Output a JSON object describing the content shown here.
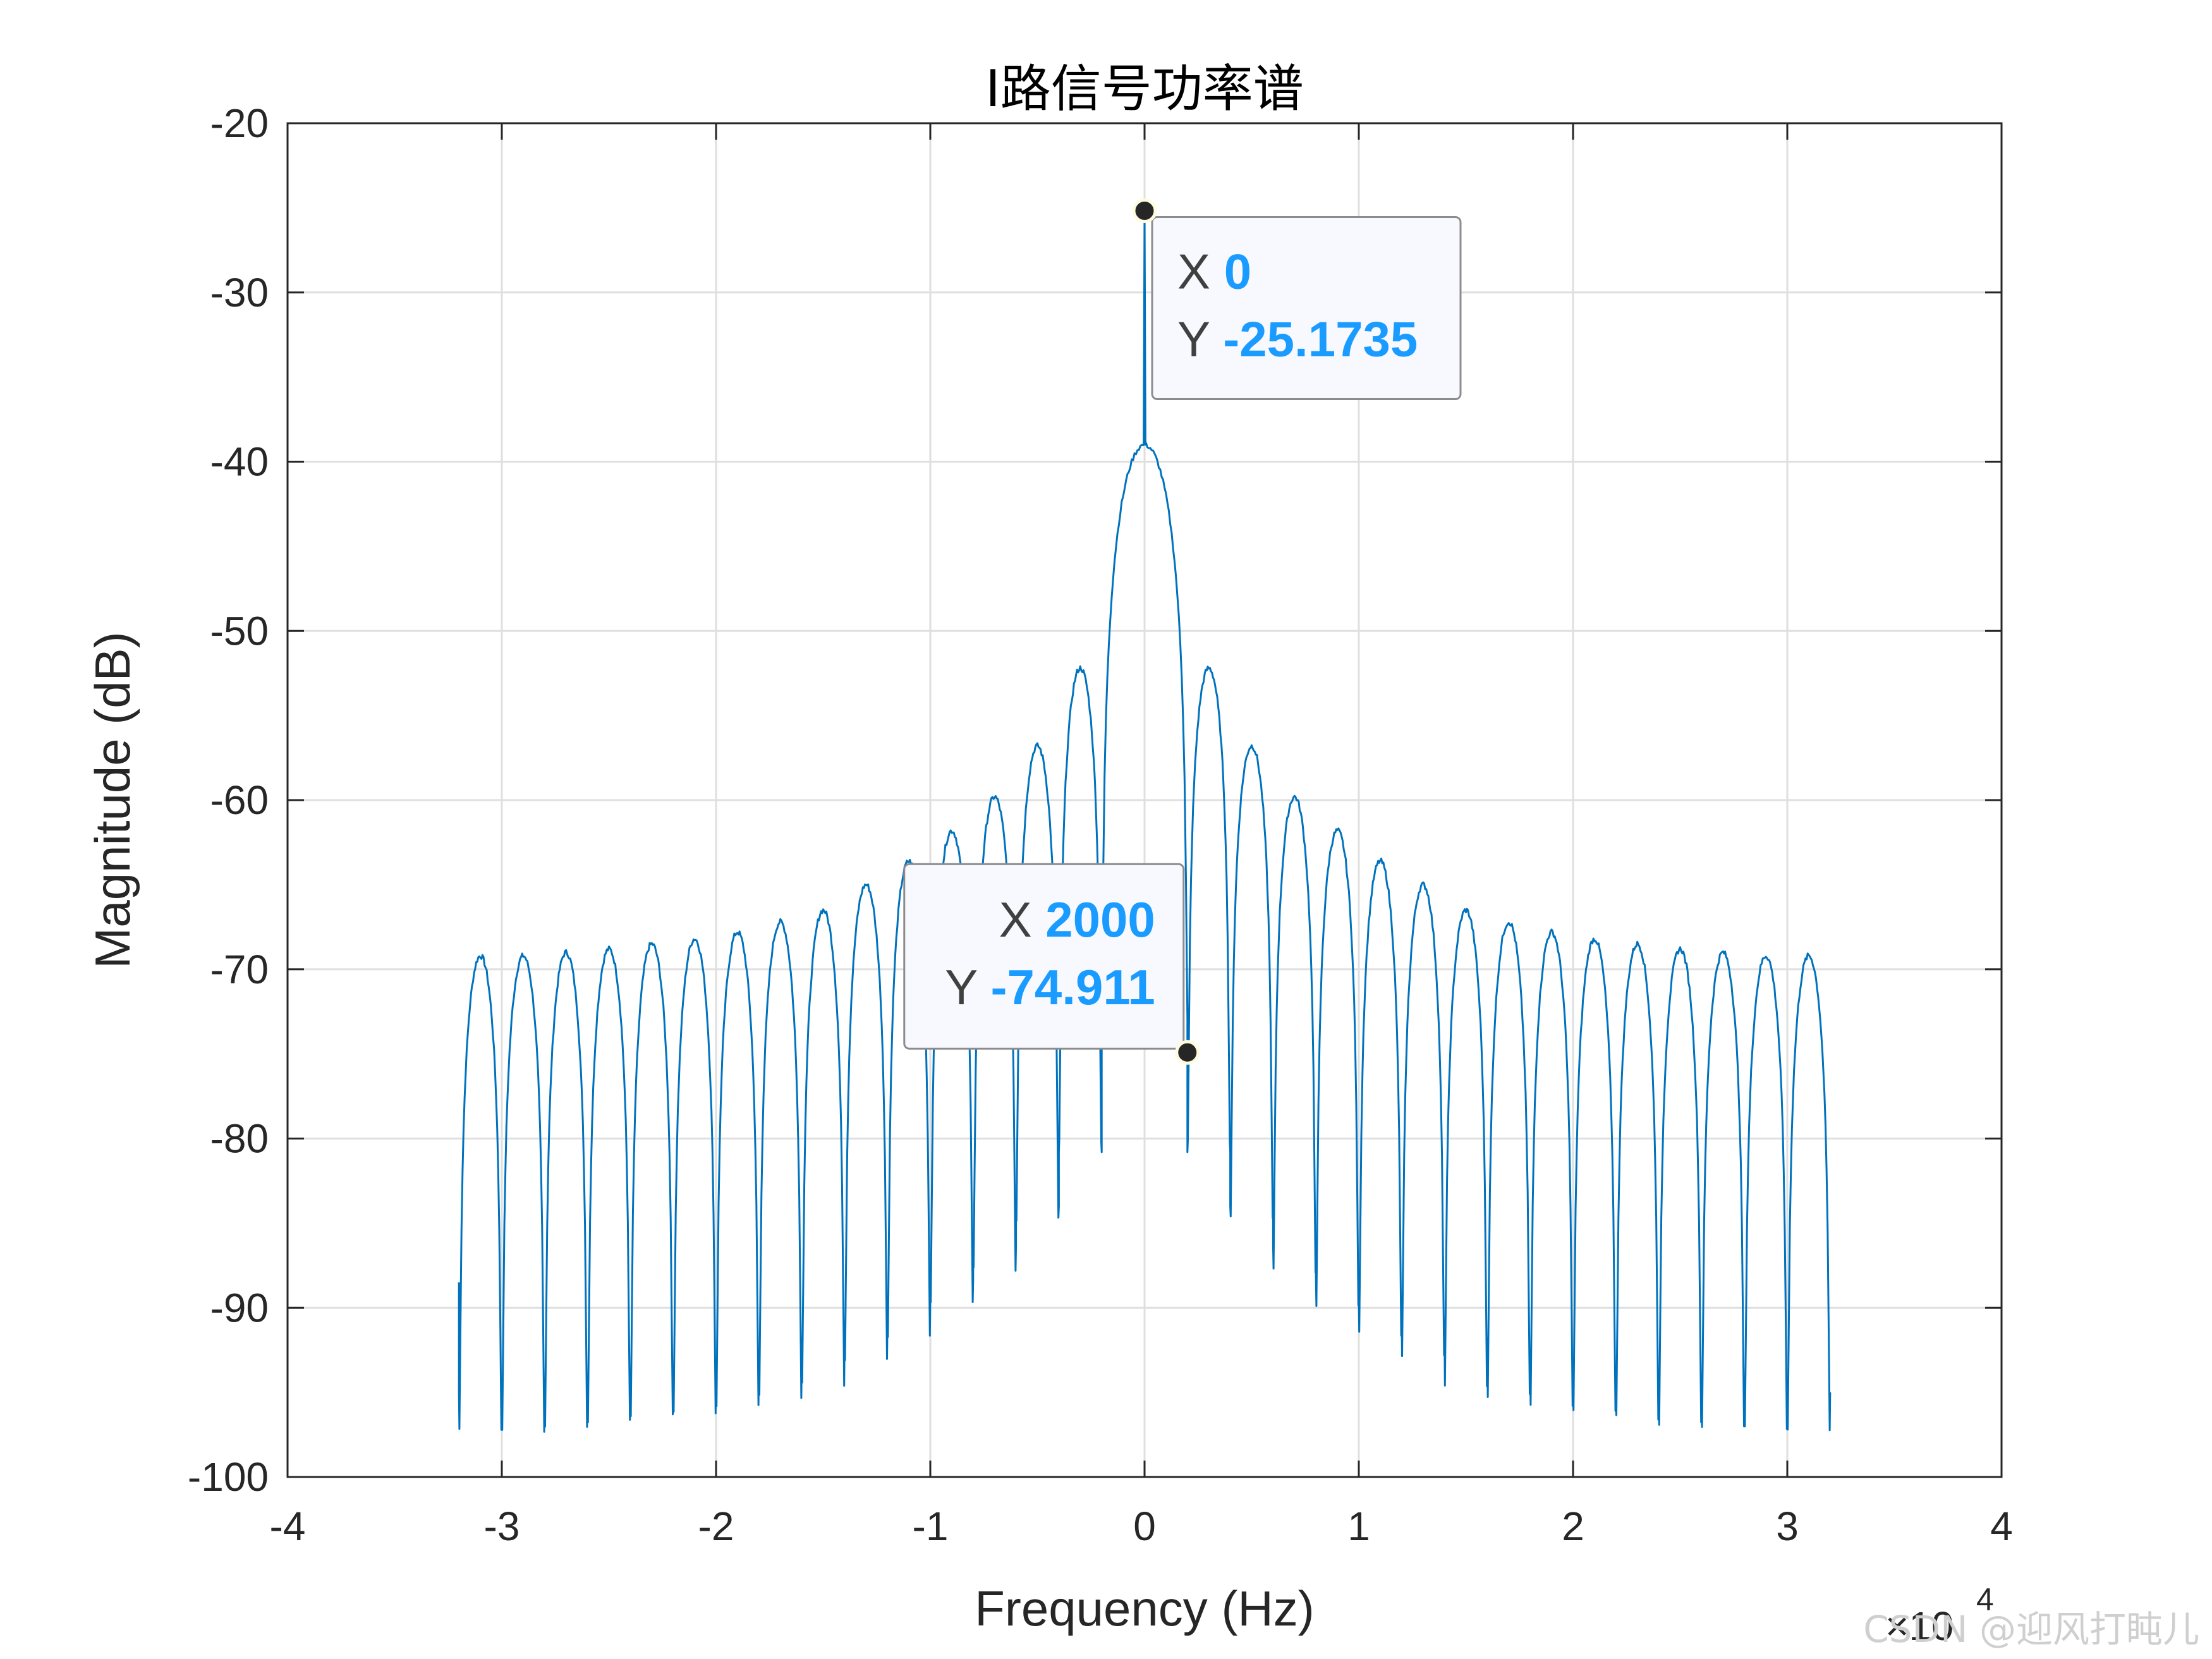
{
  "chart_data": {
    "type": "line",
    "title": "I路信号功率谱",
    "xlabel": "Frequency (Hz)",
    "ylabel": "Magnitude (dB)",
    "x_exponent_base": "×10",
    "x_exponent_power": "4",
    "xlim": [
      -40000,
      40000
    ],
    "ylim": [
      -100,
      -20
    ],
    "x_tick_values": [
      -40000,
      -30000,
      -20000,
      -10000,
      0,
      10000,
      20000,
      30000,
      40000
    ],
    "x_tick_labels": [
      "-4",
      "-3",
      "-2",
      "-1",
      "0",
      "1",
      "2",
      "3",
      "4"
    ],
    "y_tick_values": [
      -20,
      -30,
      -40,
      -50,
      -60,
      -70,
      -80,
      -90,
      -100
    ],
    "y_tick_labels": [
      "-20",
      "-30",
      "-40",
      "-50",
      "-60",
      "-70",
      "-80",
      "-90",
      "-100"
    ],
    "grid": true,
    "line_color": "#0072bd",
    "spectrum": {
      "x_start": -32000,
      "x_end": 32000,
      "start_level": -88.5,
      "end_level": -95,
      "dc_peak": -25.1735,
      "main_lobe_half_width": 2000,
      "main_lobe_top": -39,
      "sidelobes": [
        {
          "x": -31000,
          "peak": -69.2,
          "null": -95
        },
        {
          "x": -29000,
          "peak": -69.2,
          "null": -95
        },
        {
          "x": -27000,
          "peak": -69.0,
          "null": -94.6
        },
        {
          "x": -25000,
          "peak": -68.8,
          "null": -94.3
        },
        {
          "x": -23000,
          "peak": -68.5,
          "null": -94.0
        },
        {
          "x": -21000,
          "peak": -68.2,
          "null": -93.6
        },
        {
          "x": -19000,
          "peak": -67.8,
          "null": -93.1
        },
        {
          "x": -17000,
          "peak": -67.2,
          "null": -92.6
        },
        {
          "x": -15000,
          "peak": -66.5,
          "null": -91.8
        },
        {
          "x": -13000,
          "peak": -65.0,
          "null": -90.9
        },
        {
          "x": -11000,
          "peak": -63.6,
          "null": -89.5
        },
        {
          "x": -9000,
          "peak": -61.8,
          "null": -88.3
        },
        {
          "x": -7000,
          "peak": -59.8,
          "null": -86.3
        },
        {
          "x": -5000,
          "peak": -56.8,
          "null": -84.0
        },
        {
          "x": -3000,
          "peak": -52.2,
          "null": -80.8
        },
        {
          "x": 3000,
          "peak": -52.2,
          "null": -80.8
        },
        {
          "x": 5000,
          "peak": -56.8,
          "null": -84.0
        },
        {
          "x": 7000,
          "peak": -59.8,
          "null": -86.3
        },
        {
          "x": 9000,
          "peak": -61.8,
          "null": -88.3
        },
        {
          "x": 11000,
          "peak": -63.6,
          "null": -89.5
        },
        {
          "x": 13000,
          "peak": -65.0,
          "null": -90.9
        },
        {
          "x": 15000,
          "peak": -66.5,
          "null": -91.8
        },
        {
          "x": 17000,
          "peak": -67.2,
          "null": -92.6
        },
        {
          "x": 19000,
          "peak": -67.8,
          "null": -93.1
        },
        {
          "x": 21000,
          "peak": -68.2,
          "null": -93.6
        },
        {
          "x": 23000,
          "peak": -68.5,
          "null": -94.0
        },
        {
          "x": 25000,
          "peak": -68.8,
          "null": -94.3
        },
        {
          "x": 27000,
          "peak": -69.0,
          "null": -94.6
        },
        {
          "x": 29000,
          "peak": -69.2,
          "null": -95
        },
        {
          "x": 31000,
          "peak": -69.2,
          "null": -95
        }
      ]
    },
    "datatips": [
      {
        "x": 0,
        "y": -25.1735,
        "x_label": "X",
        "y_label": "Y",
        "x_text": "0",
        "y_text": "-25.1735"
      },
      {
        "x": 2000,
        "y": -74.911,
        "x_label": "X",
        "y_label": "Y",
        "x_text": "2000",
        "y_text": "-74.911"
      }
    ]
  },
  "watermark": "CSDN @迎风打盹儿"
}
